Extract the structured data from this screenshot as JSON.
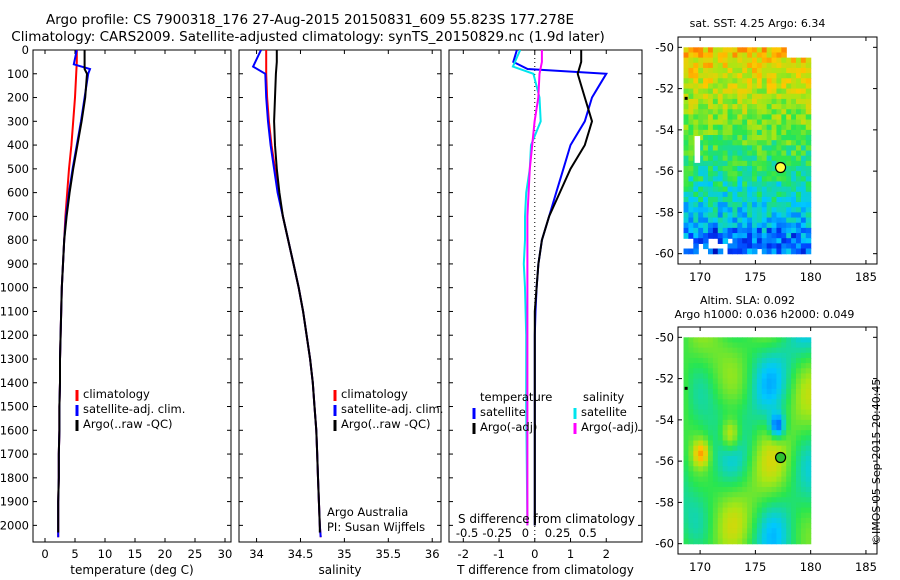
{
  "title_line1": "Argo profile: CS 7900318_176 27-Aug-2015 20150831_609 55.823S 177.278E",
  "title_line2": "Climatology: CARS2009. Satellite-adjusted climatology: synTS_20150829.nc (1.9d later)",
  "timestamp": "©IMOS 05-Sep-2015 20:40:45",
  "colors": {
    "climatology": "#ff0000",
    "satellite": "#0000ff",
    "argo": "#000000",
    "sat_salinity": "#00e5ee",
    "argo_salinity": "#ff00ff"
  },
  "chart_data": [
    {
      "type": "line",
      "name": "temperature-profile",
      "xlabel": "temperature (deg C)",
      "ylabel": "",
      "xlim": [
        -2,
        31
      ],
      "ylim": [
        2070,
        0
      ],
      "xticks": [
        "0",
        "5",
        "10",
        "15",
        "20",
        "25",
        "30"
      ],
      "yticks": [
        "0",
        "100",
        "200",
        "300",
        "400",
        "500",
        "600",
        "700",
        "800",
        "900",
        "1000",
        "1100",
        "1200",
        "1300",
        "1400",
        "1500",
        "1600",
        "1700",
        "1800",
        "1900",
        "2000"
      ],
      "legend": [
        "climatology",
        "satellite-adj. clim.",
        "Argo(..raw -QC)"
      ],
      "series": [
        {
          "name": "climatology",
          "points": [
            [
              5.3,
              0
            ],
            [
              5.3,
              50
            ],
            [
              5.2,
              100
            ],
            [
              5.0,
              200
            ],
            [
              4.7,
              300
            ],
            [
              4.4,
              400
            ],
            [
              4.0,
              500
            ],
            [
              3.7,
              600
            ],
            [
              3.4,
              700
            ],
            [
              3.2,
              800
            ],
            [
              3.0,
              900
            ],
            [
              2.8,
              1000
            ],
            [
              2.7,
              1100
            ],
            [
              2.6,
              1200
            ],
            [
              2.5,
              1300
            ],
            [
              2.5,
              1400
            ],
            [
              2.4,
              1500
            ],
            [
              2.4,
              1600
            ],
            [
              2.3,
              1700
            ],
            [
              2.3,
              1800
            ],
            [
              2.2,
              1900
            ],
            [
              2.2,
              2000
            ],
            [
              2.2,
              2050
            ]
          ]
        },
        {
          "name": "satellite",
          "points": [
            [
              5.3,
              0
            ],
            [
              4.8,
              60
            ],
            [
              7.5,
              80
            ],
            [
              7.2,
              100
            ],
            [
              6.6,
              200
            ],
            [
              6.0,
              300
            ],
            [
              5.3,
              400
            ],
            [
              4.6,
              500
            ],
            [
              4.0,
              600
            ],
            [
              3.5,
              700
            ],
            [
              3.2,
              800
            ],
            [
              3.0,
              900
            ],
            [
              2.8,
              1000
            ],
            [
              2.7,
              1100
            ],
            [
              2.6,
              1200
            ],
            [
              2.5,
              1300
            ],
            [
              2.5,
              1400
            ],
            [
              2.4,
              1500
            ],
            [
              2.4,
              1600
            ],
            [
              2.3,
              1700
            ],
            [
              2.3,
              1800
            ],
            [
              2.2,
              1900
            ],
            [
              2.2,
              2000
            ],
            [
              2.2,
              2050
            ]
          ]
        },
        {
          "name": "argo",
          "points": [
            [
              6.6,
              0
            ],
            [
              6.6,
              50
            ],
            [
              6.6,
              80
            ],
            [
              7.0,
              100
            ],
            [
              6.7,
              200
            ],
            [
              6.1,
              300
            ],
            [
              5.4,
              400
            ],
            [
              4.7,
              500
            ],
            [
              4.1,
              600
            ],
            [
              3.6,
              700
            ],
            [
              3.2,
              800
            ],
            [
              3.0,
              900
            ],
            [
              2.8,
              1000
            ],
            [
              2.7,
              1100
            ],
            [
              2.6,
              1200
            ],
            [
              2.5,
              1300
            ],
            [
              2.5,
              1400
            ],
            [
              2.4,
              1500
            ],
            [
              2.4,
              1600
            ],
            [
              2.3,
              1700
            ],
            [
              2.3,
              1800
            ],
            [
              2.2,
              1900
            ],
            [
              2.2,
              2000
            ],
            [
              2.2,
              2030
            ]
          ]
        }
      ]
    },
    {
      "type": "line",
      "name": "salinity-profile",
      "xlabel": "salinity",
      "xlim": [
        33.8,
        36.1
      ],
      "ylim": [
        2070,
        0
      ],
      "xticks": [
        "34",
        "34.5",
        "35",
        "35.5",
        "36"
      ],
      "legend": [
        "climatology",
        "satellite-adj. clim.",
        "Argo(..raw -QC)"
      ],
      "annotation": [
        "Argo Australia",
        "PI: Susan Wijffels"
      ],
      "series": [
        {
          "name": "climatology",
          "points": [
            [
              34.11,
              0
            ],
            [
              34.11,
              100
            ],
            [
              34.12,
              200
            ],
            [
              34.14,
              300
            ],
            [
              34.17,
              400
            ],
            [
              34.21,
              500
            ],
            [
              34.25,
              600
            ],
            [
              34.3,
              700
            ],
            [
              34.36,
              800
            ],
            [
              34.42,
              900
            ],
            [
              34.48,
              1000
            ],
            [
              34.53,
              1100
            ],
            [
              34.57,
              1200
            ],
            [
              34.61,
              1300
            ],
            [
              34.64,
              1400
            ],
            [
              34.66,
              1500
            ],
            [
              34.68,
              1600
            ],
            [
              34.69,
              1700
            ],
            [
              34.7,
              1800
            ],
            [
              34.71,
              1900
            ],
            [
              34.72,
              2000
            ],
            [
              34.73,
              2050
            ]
          ]
        },
        {
          "name": "satellite",
          "points": [
            [
              34.05,
              0
            ],
            [
              33.96,
              70
            ],
            [
              34.1,
              100
            ],
            [
              34.11,
              200
            ],
            [
              34.13,
              300
            ],
            [
              34.16,
              400
            ],
            [
              34.2,
              500
            ],
            [
              34.24,
              600
            ],
            [
              34.3,
              700
            ],
            [
              34.36,
              800
            ],
            [
              34.42,
              900
            ],
            [
              34.48,
              1000
            ],
            [
              34.53,
              1100
            ],
            [
              34.57,
              1200
            ],
            [
              34.61,
              1300
            ],
            [
              34.64,
              1400
            ],
            [
              34.66,
              1500
            ],
            [
              34.68,
              1600
            ],
            [
              34.69,
              1700
            ],
            [
              34.7,
              1800
            ],
            [
              34.71,
              1900
            ],
            [
              34.72,
              2000
            ],
            [
              34.73,
              2050
            ]
          ]
        },
        {
          "name": "argo",
          "points": [
            [
              34.23,
              0
            ],
            [
              34.23,
              50
            ],
            [
              34.22,
              100
            ],
            [
              34.21,
              200
            ],
            [
              34.2,
              300
            ],
            [
              34.21,
              400
            ],
            [
              34.23,
              500
            ],
            [
              34.26,
              600
            ],
            [
              34.3,
              700
            ],
            [
              34.36,
              800
            ],
            [
              34.42,
              900
            ],
            [
              34.48,
              1000
            ],
            [
              34.53,
              1100
            ],
            [
              34.57,
              1200
            ],
            [
              34.61,
              1300
            ],
            [
              34.64,
              1400
            ],
            [
              34.66,
              1500
            ],
            [
              34.68,
              1600
            ],
            [
              34.69,
              1700
            ],
            [
              34.7,
              1800
            ],
            [
              34.71,
              1900
            ],
            [
              34.72,
              2000
            ],
            [
              34.72,
              2030
            ]
          ]
        }
      ]
    },
    {
      "type": "line",
      "name": "difference-profile",
      "xlabel": "T difference from climatology",
      "xlabel2": "S difference from climatology",
      "xlim": [
        -2.4,
        3.0
      ],
      "ylim": [
        2070,
        0
      ],
      "xticks": [
        "-2",
        "-1",
        "0",
        "1",
        "2"
      ],
      "xticks2": [
        "-0.5",
        "-0.25",
        "0",
        "0.25",
        "0.5"
      ],
      "legend_temperature": {
        "title": "temperature",
        "items": [
          "satellite",
          "Argo(-adj)"
        ]
      },
      "legend_salinity": {
        "title": "salinity",
        "items": [
          "satellite",
          "Argo(-adj)"
        ]
      },
      "series": [
        {
          "name": "T satellite",
          "points": [
            [
              -0.5,
              0
            ],
            [
              -0.6,
              50
            ],
            [
              -0.2,
              80
            ],
            [
              2.0,
              100
            ],
            [
              1.8,
              150
            ],
            [
              1.6,
              200
            ],
            [
              1.4,
              300
            ],
            [
              1.0,
              400
            ],
            [
              0.8,
              500
            ],
            [
              0.6,
              600
            ],
            [
              0.4,
              700
            ],
            [
              0.2,
              800
            ],
            [
              0.1,
              900
            ],
            [
              0.05,
              1000
            ],
            [
              0.02,
              1100
            ],
            [
              0.0,
              1200
            ],
            [
              0.0,
              2000
            ]
          ]
        },
        {
          "name": "T Argo(-adj)",
          "points": [
            [
              1.3,
              0
            ],
            [
              1.3,
              50
            ],
            [
              1.2,
              100
            ],
            [
              1.4,
              200
            ],
            [
              1.6,
              300
            ],
            [
              1.4,
              400
            ],
            [
              1.0,
              500
            ],
            [
              0.7,
              600
            ],
            [
              0.4,
              700
            ],
            [
              0.2,
              800
            ],
            [
              0.1,
              900
            ],
            [
              0.05,
              1000
            ],
            [
              0.0,
              1100
            ],
            [
              0.0,
              2000
            ]
          ]
        },
        {
          "name": "S satellite",
          "points": [
            [
              -0.06,
              0
            ],
            [
              -0.12,
              70
            ],
            [
              0.05,
              100
            ],
            [
              0.1,
              200
            ],
            [
              0.11,
              300
            ],
            [
              0.03,
              400
            ],
            [
              0.02,
              500
            ],
            [
              -0.01,
              600
            ],
            [
              -0.02,
              700
            ],
            [
              -0.02,
              800
            ],
            [
              -0.03,
              900
            ],
            [
              -0.02,
              1000
            ],
            [
              -0.01,
              1200
            ],
            [
              -0.01,
              1500
            ],
            [
              0.0,
              2000
            ]
          ]
        },
        {
          "name": "S Argo(-adj)",
          "points": [
            [
              0.12,
              0
            ],
            [
              0.12,
              50
            ],
            [
              0.1,
              100
            ],
            [
              0.09,
              200
            ],
            [
              0.06,
              300
            ],
            [
              0.04,
              400
            ],
            [
              0.02,
              500
            ],
            [
              0.01,
              600
            ],
            [
              0.0,
              700
            ],
            [
              0.0,
              2000
            ]
          ]
        }
      ]
    },
    {
      "type": "heatmap",
      "name": "sst-map",
      "title": "sat. SST: 4.25 Argo: 6.34",
      "xlim": [
        168,
        186
      ],
      "ylim": [
        -60.5,
        -49.5
      ],
      "xticks": [
        "170",
        "175",
        "180",
        "185"
      ],
      "yticks": [
        "-50",
        "-52",
        "-54",
        "-56",
        "-58",
        "-60"
      ],
      "data_extent": {
        "lon": [
          168.5,
          180
        ],
        "lat": [
          -60,
          -50
        ]
      },
      "argo_position": {
        "lon": 177.278,
        "lat": -55.823
      }
    },
    {
      "type": "heatmap",
      "name": "sla-map",
      "title": "Altim. SLA: 0.092",
      "subtitle": "Argo h1000: 0.036 h2000: 0.049",
      "xlim": [
        168,
        186
      ],
      "ylim": [
        -60.5,
        -49.5
      ],
      "xticks": [
        "170",
        "175",
        "180",
        "185"
      ],
      "yticks": [
        "-50",
        "-52",
        "-54",
        "-56",
        "-58",
        "-60"
      ],
      "data_extent": {
        "lon": [
          168.5,
          180
        ],
        "lat": [
          -60,
          -50
        ]
      },
      "argo_position": {
        "lon": 177.278,
        "lat": -55.823
      }
    }
  ]
}
